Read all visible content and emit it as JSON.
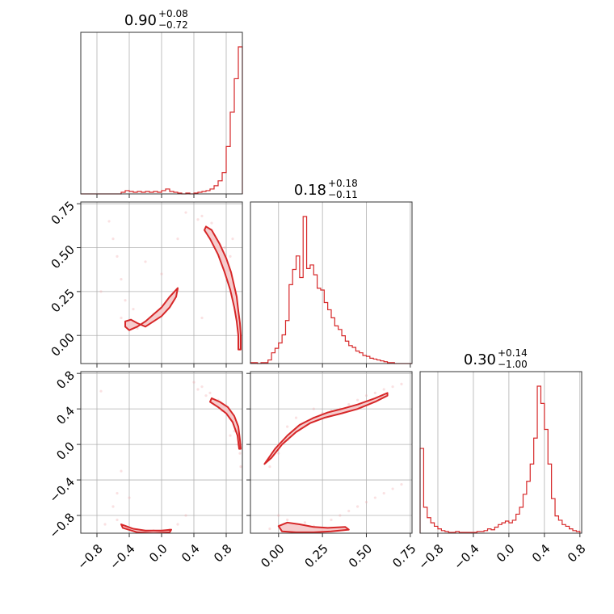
{
  "chart_data": {
    "type": "corner",
    "color": "#d62728",
    "fill_color": "#f4c4c6",
    "grid": true,
    "parameters": [
      {
        "range": [
          -1.0,
          1.0
        ],
        "ticks": [
          -0.8,
          -0.4,
          0.0,
          0.4,
          0.8
        ],
        "tick_labels": [
          "−0.8",
          "−0.4",
          "0.0",
          "0.4",
          "0.8"
        ],
        "title": {
          "median": "0.90",
          "plus": "+0.08",
          "minus": "−0.72"
        }
      },
      {
        "range": [
          -0.16,
          0.76
        ],
        "ticks": [
          0.0,
          0.25,
          0.5,
          0.75
        ],
        "tick_labels": [
          "0.00",
          "0.25",
          "0.50",
          "0.75"
        ],
        "title": {
          "median": "0.18",
          "plus": "+0.18",
          "minus": "−0.11"
        }
      },
      {
        "range": [
          -1.0,
          0.82
        ],
        "ticks": [
          -0.8,
          -0.4,
          0.0,
          0.4,
          0.8
        ],
        "tick_labels": [
          "−0.8",
          "−0.4",
          "0.0",
          "0.4",
          "0.8"
        ],
        "title": {
          "median": "0.30",
          "plus": "+0.14",
          "minus": "−1.00"
        }
      }
    ],
    "histograms": [
      {
        "param": 0,
        "bin_edges": [
          -1.0,
          -0.95,
          -0.9,
          -0.85,
          -0.8,
          -0.75,
          -0.7,
          -0.65,
          -0.6,
          -0.55,
          -0.5,
          -0.45,
          -0.4,
          -0.35,
          -0.3,
          -0.25,
          -0.2,
          -0.15,
          -0.1,
          -0.05,
          0.0,
          0.05,
          0.1,
          0.15,
          0.2,
          0.25,
          0.3,
          0.35,
          0.4,
          0.45,
          0.5,
          0.55,
          0.6,
          0.65,
          0.7,
          0.75,
          0.8,
          0.85,
          0.9,
          0.95,
          1.0
        ],
        "counts": [
          0,
          0,
          0,
          0,
          0,
          0,
          0,
          0,
          0,
          0,
          2,
          4,
          3,
          2,
          3,
          2,
          3,
          2,
          3,
          2,
          4,
          6,
          3,
          2,
          1,
          0,
          1,
          0,
          1,
          2,
          3,
          4,
          6,
          10,
          16,
          26,
          58,
          100,
          141,
          180
        ]
      },
      {
        "param": 1,
        "bin_edges": [
          -0.16,
          -0.14,
          -0.12,
          -0.1,
          -0.08,
          -0.06,
          -0.04,
          -0.02,
          0.0,
          0.02,
          0.04,
          0.06,
          0.08,
          0.1,
          0.12,
          0.14,
          0.16,
          0.18,
          0.2,
          0.22,
          0.24,
          0.26,
          0.28,
          0.3,
          0.32,
          0.34,
          0.36,
          0.38,
          0.4,
          0.42,
          0.44,
          0.46,
          0.48,
          0.5,
          0.52,
          0.54,
          0.56,
          0.58,
          0.6,
          0.62,
          0.64,
          0.66,
          0.68,
          0.7,
          0.72,
          0.74,
          0.76
        ],
        "counts": [
          1,
          1,
          0,
          1,
          1,
          4,
          12,
          17,
          23,
          32,
          48,
          88,
          105,
          120,
          96,
          164,
          106,
          110,
          99,
          84,
          82,
          68,
          60,
          51,
          42,
          38,
          31,
          25,
          20,
          18,
          14,
          12,
          9,
          8,
          6,
          5,
          4,
          3,
          2,
          1,
          1,
          0,
          0,
          0,
          0,
          0
        ]
      },
      {
        "param": 2,
        "bin_edges": [
          -1.0,
          -0.96,
          -0.92,
          -0.88,
          -0.84,
          -0.8,
          -0.76,
          -0.72,
          -0.68,
          -0.64,
          -0.6,
          -0.56,
          -0.52,
          -0.48,
          -0.44,
          -0.4,
          -0.36,
          -0.32,
          -0.28,
          -0.24,
          -0.2,
          -0.16,
          -0.12,
          -0.08,
          -0.04,
          0.0,
          0.04,
          0.08,
          0.12,
          0.16,
          0.2,
          0.24,
          0.28,
          0.32,
          0.36,
          0.4,
          0.44,
          0.48,
          0.52,
          0.56,
          0.6,
          0.64,
          0.68,
          0.72,
          0.76,
          0.8
        ],
        "counts": [
          98,
          30,
          18,
          12,
          8,
          5,
          3,
          2,
          1,
          1,
          2,
          1,
          1,
          1,
          1,
          1,
          2,
          2,
          3,
          5,
          4,
          7,
          10,
          12,
          14,
          12,
          15,
          22,
          30,
          45,
          60,
          80,
          110,
          170,
          150,
          120,
          80,
          40,
          20,
          15,
          10,
          8,
          5,
          3,
          2
        ]
      }
    ],
    "scatter_panels": [
      {
        "x_param": 0,
        "y_param": 1,
        "points": [
          [
            0.3,
            0.7
          ],
          [
            0.45,
            0.66
          ],
          [
            0.55,
            0.6
          ],
          [
            0.65,
            0.55
          ],
          [
            0.72,
            0.48
          ],
          [
            0.78,
            0.42
          ],
          [
            0.82,
            0.37
          ],
          [
            0.86,
            0.3
          ],
          [
            0.9,
            0.24
          ],
          [
            0.93,
            0.18
          ],
          [
            0.95,
            0.1
          ],
          [
            0.96,
            0.04
          ],
          [
            0.97,
            -0.02
          ],
          [
            0.96,
            -0.07
          ],
          [
            0.88,
            0.55
          ],
          [
            0.85,
            0.45
          ],
          [
            0.78,
            0.5
          ],
          [
            0.62,
            0.64
          ],
          [
            0.5,
            0.68
          ],
          [
            -0.5,
            0.32
          ],
          [
            -0.55,
            0.45
          ],
          [
            -0.6,
            0.55
          ],
          [
            -0.45,
            0.2
          ],
          [
            -0.4,
            0.08
          ],
          [
            -0.3,
            0.04
          ],
          [
            -0.2,
            0.07
          ],
          [
            -0.1,
            0.12
          ],
          [
            0.0,
            0.15
          ],
          [
            0.1,
            0.2
          ],
          [
            0.2,
            0.26
          ],
          [
            -0.65,
            0.65
          ],
          [
            -0.5,
            0.1
          ],
          [
            -0.35,
            0.15
          ],
          [
            0.0,
            0.35
          ],
          [
            -0.2,
            0.42
          ],
          [
            0.5,
            0.1
          ],
          [
            0.2,
            0.55
          ],
          [
            -0.75,
            0.25
          ]
        ],
        "contours": [
          [
            [
              0.55,
              0.62
            ],
            [
              0.62,
              0.6
            ],
            [
              0.72,
              0.52
            ],
            [
              0.8,
              0.44
            ],
            [
              0.86,
              0.36
            ],
            [
              0.9,
              0.28
            ],
            [
              0.93,
              0.22
            ],
            [
              0.95,
              0.14
            ],
            [
              0.97,
              0.07
            ],
            [
              0.98,
              0.0
            ],
            [
              0.98,
              -0.08
            ],
            [
              0.95,
              -0.08
            ],
            [
              0.95,
              0.0
            ],
            [
              0.93,
              0.08
            ],
            [
              0.9,
              0.16
            ],
            [
              0.85,
              0.26
            ],
            [
              0.78,
              0.36
            ],
            [
              0.7,
              0.46
            ],
            [
              0.6,
              0.55
            ],
            [
              0.53,
              0.6
            ]
          ],
          [
            [
              -0.45,
              0.05
            ],
            [
              -0.4,
              0.03
            ],
            [
              -0.3,
              0.05
            ],
            [
              -0.2,
              0.08
            ],
            [
              -0.1,
              0.12
            ],
            [
              0.0,
              0.16
            ],
            [
              0.1,
              0.22
            ],
            [
              0.2,
              0.27
            ],
            [
              0.18,
              0.22
            ],
            [
              0.1,
              0.16
            ],
            [
              0.0,
              0.11
            ],
            [
              -0.1,
              0.08
            ],
            [
              -0.2,
              0.05
            ],
            [
              -0.3,
              0.07
            ],
            [
              -0.38,
              0.09
            ],
            [
              -0.45,
              0.08
            ]
          ]
        ]
      },
      {
        "x_param": 0,
        "y_param": 2,
        "points": [
          [
            0.4,
            0.7
          ],
          [
            0.5,
            0.65
          ],
          [
            0.6,
            0.58
          ],
          [
            0.7,
            0.5
          ],
          [
            0.8,
            0.4
          ],
          [
            0.85,
            0.3
          ],
          [
            0.9,
            0.15
          ],
          [
            0.95,
            0.0
          ],
          [
            0.97,
            -0.1
          ],
          [
            0.98,
            -0.25
          ],
          [
            0.45,
            0.62
          ],
          [
            0.55,
            0.55
          ],
          [
            0.75,
            0.38
          ],
          [
            -0.5,
            -0.3
          ],
          [
            -0.55,
            -0.55
          ],
          [
            -0.6,
            -0.7
          ],
          [
            -0.55,
            -0.85
          ],
          [
            -0.45,
            -0.92
          ],
          [
            -0.3,
            -0.96
          ],
          [
            -0.1,
            -0.97
          ],
          [
            0.1,
            -0.96
          ],
          [
            0.2,
            -0.9
          ],
          [
            -0.7,
            -0.9
          ],
          [
            0.3,
            -0.8
          ],
          [
            -0.4,
            -0.6
          ],
          [
            0.85,
            0.1
          ],
          [
            -0.75,
            0.6
          ]
        ],
        "contours": [
          [
            [
              0.62,
              0.52
            ],
            [
              0.72,
              0.48
            ],
            [
              0.82,
              0.42
            ],
            [
              0.9,
              0.32
            ],
            [
              0.95,
              0.2
            ],
            [
              0.97,
              0.05
            ],
            [
              0.98,
              -0.05
            ],
            [
              0.96,
              -0.05
            ],
            [
              0.94,
              0.1
            ],
            [
              0.88,
              0.25
            ],
            [
              0.8,
              0.35
            ],
            [
              0.7,
              0.42
            ],
            [
              0.6,
              0.48
            ]
          ],
          [
            [
              -0.5,
              -0.9
            ],
            [
              -0.35,
              -0.95
            ],
            [
              -0.2,
              -0.97
            ],
            [
              0.0,
              -0.97
            ],
            [
              0.12,
              -0.96
            ],
            [
              0.1,
              -0.99
            ],
            [
              -0.1,
              -1.0
            ],
            [
              -0.3,
              -0.99
            ],
            [
              -0.48,
              -0.94
            ]
          ]
        ]
      },
      {
        "x_param": 1,
        "y_param": 2,
        "points": [
          [
            -0.05,
            -0.25
          ],
          [
            0.0,
            -0.1
          ],
          [
            0.05,
            0.05
          ],
          [
            0.1,
            0.15
          ],
          [
            0.15,
            0.22
          ],
          [
            0.2,
            0.3
          ],
          [
            0.25,
            0.35
          ],
          [
            0.3,
            0.38
          ],
          [
            0.35,
            0.4
          ],
          [
            0.4,
            0.45
          ],
          [
            0.45,
            0.5
          ],
          [
            0.5,
            0.55
          ],
          [
            0.55,
            0.58
          ],
          [
            0.6,
            0.62
          ],
          [
            0.65,
            0.65
          ],
          [
            0.7,
            0.68
          ],
          [
            0.1,
            0.3
          ],
          [
            0.2,
            0.4
          ],
          [
            0.05,
            0.2
          ],
          [
            0.0,
            -0.8
          ],
          [
            0.05,
            -0.85
          ],
          [
            0.1,
            -0.9
          ],
          [
            0.15,
            -0.88
          ],
          [
            0.2,
            -0.92
          ],
          [
            0.3,
            -0.85
          ],
          [
            0.35,
            -0.8
          ],
          [
            0.4,
            -0.75
          ],
          [
            0.45,
            -0.7
          ],
          [
            0.5,
            -0.65
          ],
          [
            0.55,
            -0.6
          ],
          [
            0.6,
            -0.55
          ],
          [
            0.65,
            -0.5
          ],
          [
            0.7,
            -0.45
          ],
          [
            0.25,
            -0.95
          ],
          [
            -0.05,
            -0.95
          ]
        ],
        "contours": [
          [
            [
              -0.08,
              -0.22
            ],
            [
              -0.02,
              -0.05
            ],
            [
              0.05,
              0.1
            ],
            [
              0.12,
              0.22
            ],
            [
              0.2,
              0.3
            ],
            [
              0.28,
              0.36
            ],
            [
              0.36,
              0.4
            ],
            [
              0.45,
              0.45
            ],
            [
              0.55,
              0.52
            ],
            [
              0.62,
              0.58
            ],
            [
              0.62,
              0.55
            ],
            [
              0.55,
              0.48
            ],
            [
              0.45,
              0.4
            ],
            [
              0.36,
              0.35
            ],
            [
              0.26,
              0.3
            ],
            [
              0.18,
              0.24
            ],
            [
              0.1,
              0.14
            ],
            [
              0.02,
              0.0
            ],
            [
              -0.04,
              -0.15
            ]
          ],
          [
            [
              0.0,
              -0.92
            ],
            [
              0.05,
              -0.88
            ],
            [
              0.12,
              -0.9
            ],
            [
              0.2,
              -0.93
            ],
            [
              0.28,
              -0.94
            ],
            [
              0.38,
              -0.93
            ],
            [
              0.4,
              -0.96
            ],
            [
              0.3,
              -0.98
            ],
            [
              0.2,
              -0.99
            ],
            [
              0.1,
              -0.99
            ],
            [
              0.02,
              -0.98
            ]
          ]
        ]
      }
    ]
  }
}
